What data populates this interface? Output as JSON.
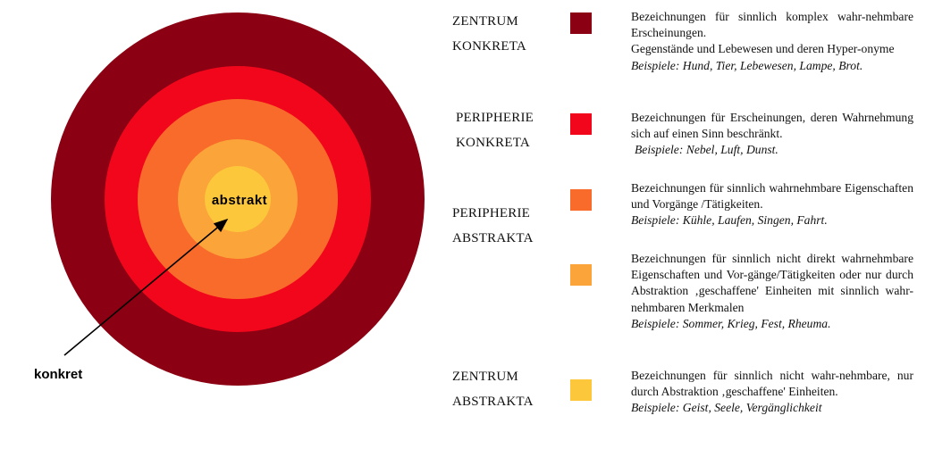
{
  "diagram": {
    "center_label": "abstrakt",
    "outer_label": "konkret",
    "ring_colors": [
      "#8b0012",
      "#f2061c",
      "#f96b2a",
      "#fba43a",
      "#fdc73b"
    ]
  },
  "legend": [
    {
      "category": [
        "ZENTRUM",
        "KONKRETA"
      ],
      "color": "#8b0012",
      "description": [
        "Bezeichnungen für sinnlich komplex wahr-nehmbare Erscheinungen.",
        "Gegenstände und Lebewesen und deren Hyper-onyme"
      ],
      "examples": "Beispiele: Hund, Tier, Lebewesen, Lampe, Brot."
    },
    {
      "category": [
        "PERIPHERIE",
        "KONKRETA"
      ],
      "color": "#f2061c",
      "description": [
        "Bezeichnungen für Erscheinungen, deren Wahrnehmung sich auf einen Sinn beschränkt."
      ],
      "examples": "Beispiele: Nebel, Luft, Dunst."
    },
    {
      "category": [
        "PERIPHERIE",
        "ABSTRAKTA"
      ],
      "color": "#f96b2a",
      "description": [
        "Bezeichnungen für sinnlich wahrnehmbare Eigenschaften und Vorgänge /Tätigkeiten."
      ],
      "examples": "Beispiele: Kühle, Laufen, Singen, Fahrt."
    },
    {
      "category": [],
      "color": "#fba43a",
      "description": [
        "Bezeichnungen für sinnlich nicht direkt wahrnehmbare Eigenschaften und Vor-gänge/Tätigkeiten oder nur durch Abstraktion ‚geschaffene' Einheiten mit sinnlich wahr-nehmbaren Merkmalen"
      ],
      "examples": "Beispiele: Sommer, Krieg, Fest, Rheuma."
    },
    {
      "category": [
        "ZENTRUM",
        "ABSTRAKTA"
      ],
      "color": "#fdc73b",
      "description": [
        "Bezeichnungen für sinnlich nicht wahr-nehmbare, nur durch Abstraktion ‚geschaffene' Einheiten."
      ],
      "examples": "Beispiele: Geist, Seele, Vergänglichkeit"
    }
  ]
}
